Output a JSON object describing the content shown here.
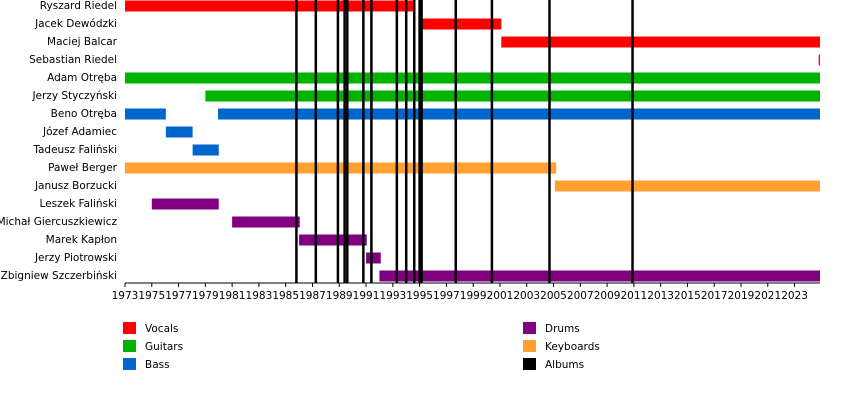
{
  "chart_data": {
    "type": "timeline",
    "categories": [
      "Ryszard Riedel",
      "Jacek Dewódzki",
      "Maciej Balcar",
      "Sebastian Riedel",
      "Adam Otręba",
      "Jerzy Styczyński",
      "Beno Otręba",
      "Józef Adamiec",
      "Tadeusz Faliński",
      "Paweł Berger",
      "Janusz Borzucki",
      "Leszek Faliński",
      "Michał Giercuszkiewicz",
      "Marek Kapłon",
      "Jerzy Piotrowski",
      "Zbigniew Szczerbiński"
    ],
    "roles": [
      {
        "name": "Vocals",
        "color": "#ff0000"
      },
      {
        "name": "Guitars",
        "color": "#00b300"
      },
      {
        "name": "Bass",
        "color": "#0066cc"
      },
      {
        "name": "Drums",
        "color": "#800080"
      },
      {
        "name": "Keyboards",
        "color": "#ffa030"
      }
    ],
    "bars": [
      {
        "member": 0,
        "role": 0,
        "start": 1973,
        "end": 1994.6
      },
      {
        "member": 1,
        "role": 0,
        "start": 1995,
        "end": 2001.1
      },
      {
        "member": 2,
        "role": 0,
        "start": 2001.1,
        "end": 2024.9
      },
      {
        "member": 3,
        "role": 0,
        "start": 2024.8,
        "end": 2024.9
      },
      {
        "member": 4,
        "role": 1,
        "start": 1973,
        "end": 2024.9
      },
      {
        "member": 5,
        "role": 1,
        "start": 1979,
        "end": 2024.9
      },
      {
        "member": 6,
        "role": 2,
        "start": 1973,
        "end": 1976.05
      },
      {
        "member": 6,
        "role": 2,
        "start": 1979.95,
        "end": 2024.9
      },
      {
        "member": 7,
        "role": 2,
        "start": 1976.05,
        "end": 1978.05
      },
      {
        "member": 8,
        "role": 2,
        "start": 1978.05,
        "end": 1980
      },
      {
        "member": 9,
        "role": 4,
        "start": 1973,
        "end": 2005.2
      },
      {
        "member": 10,
        "role": 4,
        "start": 2005.1,
        "end": 2024.9
      },
      {
        "member": 11,
        "role": 3,
        "start": 1975,
        "end": 1980
      },
      {
        "member": 12,
        "role": 3,
        "start": 1981,
        "end": 1986.05
      },
      {
        "member": 13,
        "role": 3,
        "start": 1986,
        "end": 1991.05
      },
      {
        "member": 14,
        "role": 3,
        "start": 1991,
        "end": 1992.1
      },
      {
        "member": 15,
        "role": 3,
        "start": 1992,
        "end": 2024.9
      }
    ],
    "albums": {
      "name": "Albums",
      "color": "#000000",
      "values": [
        1985.8,
        1987.25,
        1988.9,
        1989.4,
        1989.6,
        1990.8,
        1991.4,
        1993.3,
        1994.0,
        1994.6,
        1995.0,
        1995.15,
        1997.7,
        2000.4,
        2004.7,
        2010.9
      ]
    },
    "xlim": [
      1973,
      2024.9
    ],
    "xticks": [
      1973,
      1975,
      1977,
      1979,
      1981,
      1983,
      1985,
      1987,
      1989,
      1991,
      1993,
      1995,
      1997,
      1999,
      2001,
      2003,
      2005,
      2007,
      2009,
      2011,
      2013,
      2015,
      2017,
      2019,
      2021,
      2023
    ]
  }
}
